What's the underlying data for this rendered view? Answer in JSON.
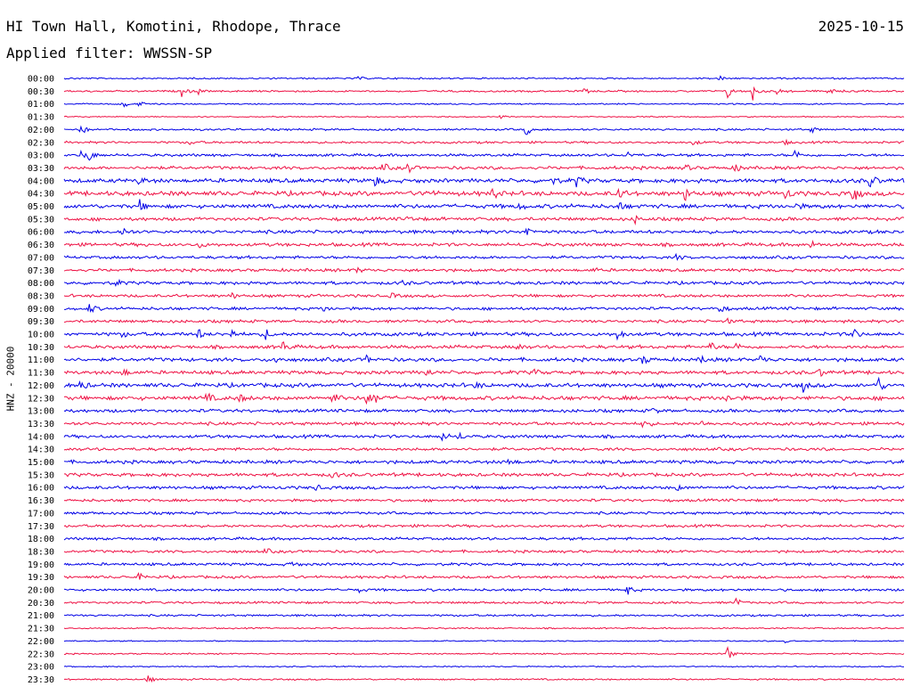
{
  "header": {
    "station": "HI Town Hall, Komotini, Rhodope, Thrace",
    "date": "2025-10-15",
    "filter": "Applied filter: WWSSN-SP"
  },
  "channel_label": "HNZ - 20000",
  "colors": {
    "blue": "#0000e6",
    "red": "#ee1144"
  },
  "chart_data": {
    "type": "line",
    "title": "",
    "xlabel": "",
    "ylabel": "HNZ - 20000",
    "trace_colors": [
      "#0000e6",
      "#ee1144"
    ],
    "rows": [
      {
        "time": "00:00",
        "color": "blue",
        "amp": 0.7,
        "events": [
          {
            "t": 0.35,
            "a": 2.0
          },
          {
            "t": 0.78,
            "a": 2.5
          }
        ]
      },
      {
        "time": "00:30",
        "color": "red",
        "amp": 0.8,
        "events": [
          {
            "t": 0.14,
            "a": 6
          },
          {
            "t": 0.16,
            "a": 3
          },
          {
            "t": 0.62,
            "a": 2.5
          },
          {
            "t": 0.79,
            "a": 8
          },
          {
            "t": 0.82,
            "a": 10
          },
          {
            "t": 0.85,
            "a": 4
          },
          {
            "t": 0.91,
            "a": 5
          }
        ]
      },
      {
        "time": "01:00",
        "color": "blue",
        "amp": 0.6,
        "events": [
          {
            "t": 0.07,
            "a": 5
          },
          {
            "t": 0.09,
            "a": 3
          }
        ]
      },
      {
        "time": "01:30",
        "color": "red",
        "amp": 0.5,
        "events": [
          {
            "t": 0.52,
            "a": 1.5
          }
        ]
      },
      {
        "time": "02:00",
        "color": "blue",
        "amp": 0.9,
        "events": [
          {
            "t": 0.02,
            "a": 6
          },
          {
            "t": 0.55,
            "a": 7
          },
          {
            "t": 0.89,
            "a": 3
          }
        ]
      },
      {
        "time": "02:30",
        "color": "red",
        "amp": 1.0,
        "events": [
          {
            "t": 0.15,
            "a": 2
          },
          {
            "t": 0.75,
            "a": 3
          },
          {
            "t": 0.86,
            "a": 2
          }
        ]
      },
      {
        "time": "03:00",
        "color": "blue",
        "amp": 1.2,
        "events": [
          {
            "t": 0.02,
            "a": 5
          },
          {
            "t": 0.03,
            "a": 6
          },
          {
            "t": 0.67,
            "a": 4
          },
          {
            "t": 0.87,
            "a": 6
          }
        ]
      },
      {
        "time": "03:30",
        "color": "red",
        "amp": 1.4,
        "events": [
          {
            "t": 0.1,
            "a": 4
          },
          {
            "t": 0.38,
            "a": 5
          },
          {
            "t": 0.41,
            "a": 6
          },
          {
            "t": 0.74,
            "a": 4
          },
          {
            "t": 0.8,
            "a": 5
          }
        ]
      },
      {
        "time": "04:00",
        "color": "blue",
        "amp": 1.8,
        "events": [
          {
            "t": 0.09,
            "a": 4
          },
          {
            "t": 0.37,
            "a": 7
          },
          {
            "t": 0.58,
            "a": 5
          },
          {
            "t": 0.61,
            "a": 6
          },
          {
            "t": 0.96,
            "a": 8
          }
        ]
      },
      {
        "time": "04:30",
        "color": "red",
        "amp": 2.0,
        "events": [
          {
            "t": 0.43,
            "a": 5
          },
          {
            "t": 0.51,
            "a": 6
          },
          {
            "t": 0.66,
            "a": 7
          },
          {
            "t": 0.74,
            "a": 7
          },
          {
            "t": 0.86,
            "a": 6
          },
          {
            "t": 0.94,
            "a": 9
          }
        ]
      },
      {
        "time": "05:00",
        "color": "blue",
        "amp": 1.8,
        "events": [
          {
            "t": 0.09,
            "a": 6
          },
          {
            "t": 0.54,
            "a": 4
          },
          {
            "t": 0.66,
            "a": 5
          },
          {
            "t": 0.87,
            "a": 4
          }
        ]
      },
      {
        "time": "05:30",
        "color": "red",
        "amp": 1.5,
        "events": [
          {
            "t": 0.41,
            "a": 3
          },
          {
            "t": 0.68,
            "a": 4
          }
        ]
      },
      {
        "time": "06:00",
        "color": "blue",
        "amp": 1.5,
        "events": [
          {
            "t": 0.07,
            "a": 5
          },
          {
            "t": 0.55,
            "a": 7
          }
        ]
      },
      {
        "time": "06:30",
        "color": "red",
        "amp": 1.5,
        "events": [
          {
            "t": 0.16,
            "a": 3
          },
          {
            "t": 0.89,
            "a": 4
          }
        ]
      },
      {
        "time": "07:00",
        "color": "blue",
        "amp": 1.3,
        "events": [
          {
            "t": 0.73,
            "a": 3
          }
        ]
      },
      {
        "time": "07:30",
        "color": "red",
        "amp": 1.3,
        "events": [
          {
            "t": 0.35,
            "a": 3
          },
          {
            "t": 0.63,
            "a": 2.5
          }
        ]
      },
      {
        "time": "08:00",
        "color": "blue",
        "amp": 1.4,
        "events": [
          {
            "t": 0.06,
            "a": 5
          },
          {
            "t": 0.4,
            "a": 4
          }
        ]
      },
      {
        "time": "08:30",
        "color": "red",
        "amp": 1.3,
        "events": [
          {
            "t": 0.2,
            "a": 3
          },
          {
            "t": 0.39,
            "a": 3
          }
        ]
      },
      {
        "time": "09:00",
        "color": "blue",
        "amp": 1.3,
        "events": [
          {
            "t": 0.03,
            "a": 6
          },
          {
            "t": 0.31,
            "a": 3
          },
          {
            "t": 0.78,
            "a": 6
          }
        ]
      },
      {
        "time": "09:30",
        "color": "red",
        "amp": 1.3,
        "events": [
          {
            "t": 0.79,
            "a": 2.5
          }
        ]
      },
      {
        "time": "10:00",
        "color": "blue",
        "amp": 1.6,
        "events": [
          {
            "t": 0.07,
            "a": 3
          },
          {
            "t": 0.16,
            "a": 5
          },
          {
            "t": 0.2,
            "a": 4
          },
          {
            "t": 0.24,
            "a": 6
          },
          {
            "t": 0.66,
            "a": 6
          },
          {
            "t": 0.94,
            "a": 7
          }
        ]
      },
      {
        "time": "10:30",
        "color": "red",
        "amp": 1.5,
        "events": [
          {
            "t": 0.26,
            "a": 7
          },
          {
            "t": 0.54,
            "a": 4
          },
          {
            "t": 0.77,
            "a": 5
          },
          {
            "t": 0.8,
            "a": 4
          }
        ]
      },
      {
        "time": "11:00",
        "color": "blue",
        "amp": 1.6,
        "events": [
          {
            "t": 0.25,
            "a": 4
          },
          {
            "t": 0.36,
            "a": 4
          },
          {
            "t": 0.69,
            "a": 5
          },
          {
            "t": 0.76,
            "a": 4
          },
          {
            "t": 0.83,
            "a": 5
          }
        ]
      },
      {
        "time": "11:30",
        "color": "red",
        "amp": 1.6,
        "events": [
          {
            "t": 0.07,
            "a": 4
          },
          {
            "t": 0.43,
            "a": 5
          },
          {
            "t": 0.56,
            "a": 3
          },
          {
            "t": 0.9,
            "a": 4
          }
        ]
      },
      {
        "time": "12:00",
        "color": "blue",
        "amp": 1.8,
        "events": [
          {
            "t": 0.02,
            "a": 5
          },
          {
            "t": 0.49,
            "a": 3
          },
          {
            "t": 0.88,
            "a": 6
          },
          {
            "t": 0.97,
            "a": 8
          }
        ]
      },
      {
        "time": "12:30",
        "color": "red",
        "amp": 1.8,
        "events": [
          {
            "t": 0.17,
            "a": 5
          },
          {
            "t": 0.21,
            "a": 4
          },
          {
            "t": 0.32,
            "a": 6
          },
          {
            "t": 0.36,
            "a": 7
          },
          {
            "t": 0.37,
            "a": 5
          },
          {
            "t": 0.79,
            "a": 4
          }
        ]
      },
      {
        "time": "13:00",
        "color": "blue",
        "amp": 1.4,
        "events": [
          {
            "t": 0.7,
            "a": 3
          }
        ]
      },
      {
        "time": "13:30",
        "color": "red",
        "amp": 1.4,
        "events": [
          {
            "t": 0.69,
            "a": 5
          },
          {
            "t": 0.76,
            "a": 3
          }
        ]
      },
      {
        "time": "14:00",
        "color": "blue",
        "amp": 1.4,
        "events": [
          {
            "t": 0.45,
            "a": 5
          },
          {
            "t": 0.47,
            "a": 4
          }
        ]
      },
      {
        "time": "14:30",
        "color": "red",
        "amp": 1.3,
        "events": []
      },
      {
        "time": "15:00",
        "color": "blue",
        "amp": 1.5,
        "events": [
          {
            "t": 0.53,
            "a": 4
          }
        ]
      },
      {
        "time": "15:30",
        "color": "red",
        "amp": 1.5,
        "events": [
          {
            "t": 0.32,
            "a": 4
          }
        ]
      },
      {
        "time": "16:00",
        "color": "blue",
        "amp": 1.4,
        "events": [
          {
            "t": 0.3,
            "a": 3
          },
          {
            "t": 0.73,
            "a": 3
          }
        ]
      },
      {
        "time": "16:30",
        "color": "red",
        "amp": 1.2,
        "events": []
      },
      {
        "time": "17:00",
        "color": "blue",
        "amp": 1.2,
        "events": []
      },
      {
        "time": "17:30",
        "color": "red",
        "amp": 1.2,
        "events": []
      },
      {
        "time": "18:00",
        "color": "blue",
        "amp": 1.2,
        "events": []
      },
      {
        "time": "18:30",
        "color": "red",
        "amp": 1.2,
        "events": [
          {
            "t": 0.24,
            "a": 3
          }
        ]
      },
      {
        "time": "19:00",
        "color": "blue",
        "amp": 1.2,
        "events": [
          {
            "t": 0.27,
            "a": 4
          }
        ]
      },
      {
        "time": "19:30",
        "color": "red",
        "amp": 1.2,
        "events": [
          {
            "t": 0.09,
            "a": 4
          }
        ]
      },
      {
        "time": "20:00",
        "color": "blue",
        "amp": 1.1,
        "events": [
          {
            "t": 0.35,
            "a": 3
          },
          {
            "t": 0.67,
            "a": 6
          }
        ]
      },
      {
        "time": "20:30",
        "color": "red",
        "amp": 1.0,
        "events": [
          {
            "t": 0.8,
            "a": 5
          }
        ]
      },
      {
        "time": "21:00",
        "color": "blue",
        "amp": 0.9,
        "events": []
      },
      {
        "time": "21:30",
        "color": "red",
        "amp": 0.6,
        "events": []
      },
      {
        "time": "22:00",
        "color": "blue",
        "amp": 0.5,
        "events": [
          {
            "t": 0.86,
            "a": 3
          }
        ]
      },
      {
        "time": "22:30",
        "color": "red",
        "amp": 0.6,
        "events": [
          {
            "t": 0.79,
            "a": 8
          }
        ]
      },
      {
        "time": "23:00",
        "color": "blue",
        "amp": 0.5,
        "events": []
      },
      {
        "time": "23:30",
        "color": "red",
        "amp": 0.7,
        "events": [
          {
            "t": 0.1,
            "a": 4
          }
        ]
      }
    ]
  }
}
